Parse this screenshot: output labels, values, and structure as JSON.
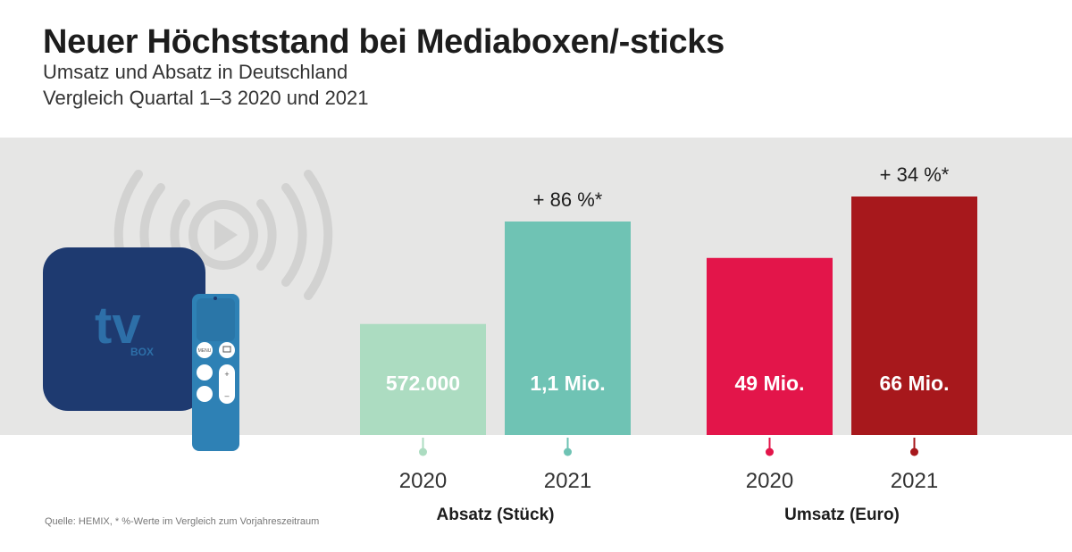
{
  "header": {
    "title": "Neuer Höchststand bei Mediaboxen/-sticks",
    "subtitle_line1": "Umsatz und Absatz in Deutschland",
    "subtitle_line2": "Vergleich Quartal 1–3 2020 und 2021"
  },
  "illustration": {
    "box_text": "tv",
    "box_subtext": "BOX",
    "remote_menu_label": "MENU",
    "icons": [
      "broadcast-play-icon",
      "tv-box-icon",
      "remote-control-icon"
    ]
  },
  "colors": {
    "band": "#e6e6e5",
    "absatz_2020": "#acdcc1",
    "absatz_2021": "#6fc3b4",
    "umsatz_2020": "#e3154a",
    "umsatz_2021": "#a7181c",
    "box": "#1e3a70",
    "remote": "#2e81b5"
  },
  "chart_data": [
    {
      "type": "bar",
      "group_label": "Absatz (Stück)",
      "categories": [
        "2020",
        "2021"
      ],
      "values": [
        572000,
        1100000
      ],
      "value_labels": [
        "572.000",
        "1,1 Mio."
      ],
      "change_label": "+ 86 %*",
      "colors": [
        "#acdcc1",
        "#6fc3b4"
      ]
    },
    {
      "type": "bar",
      "group_label": "Umsatz (Euro)",
      "categories": [
        "2020",
        "2021"
      ],
      "values": [
        49,
        66
      ],
      "value_labels": [
        "49 Mio.",
        "66 Mio."
      ],
      "change_label": "+ 34 %*",
      "colors": [
        "#e3154a",
        "#a7181c"
      ]
    }
  ],
  "footer": {
    "source": "Quelle: HEMIX, * %-Werte im Vergleich zum Vorjahreszeitraum"
  }
}
